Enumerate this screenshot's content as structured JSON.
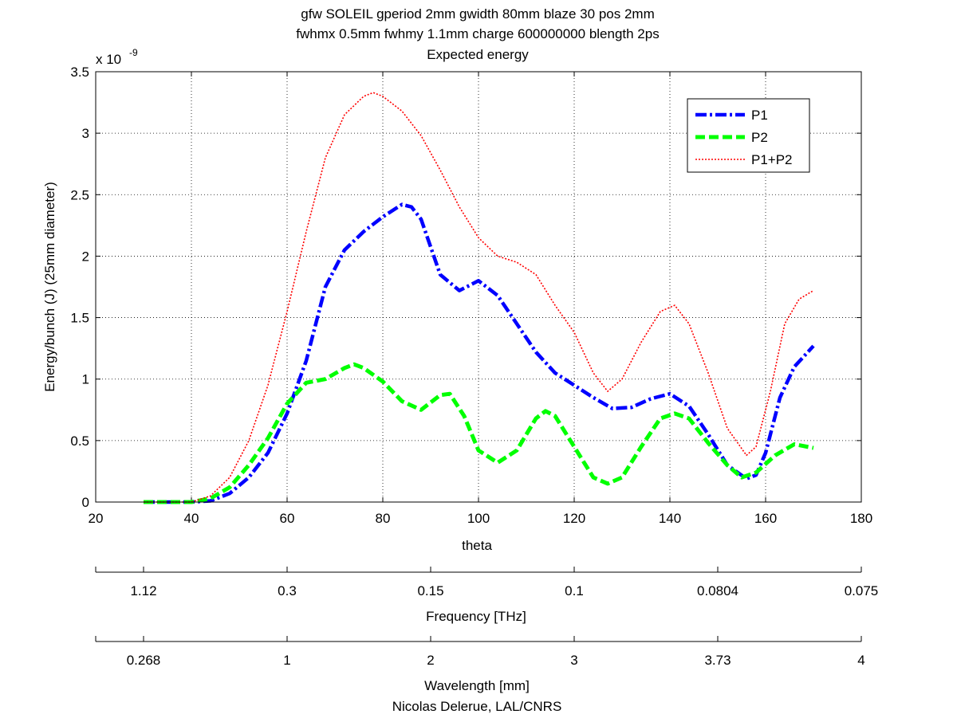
{
  "chart_data": {
    "type": "line",
    "title_lines": [
      "gfw SOLEIL gperiod 2mm gwidth 80mm blaze 30 pos 2mm",
      "fwhmx 0.5mm fwhmy 1.1mm charge 600000000 blength 2ps",
      "Expected energy"
    ],
    "xlabel": "theta",
    "ylabel": "Energy/bunch (J) (25mm diameter)",
    "y_exponent_label": "x 10",
    "y_exponent": "-9",
    "xlim": [
      20,
      180
    ],
    "ylim": [
      0,
      3.5
    ],
    "x_ticks": [
      "20",
      "40",
      "60",
      "80",
      "100",
      "120",
      "140",
      "160",
      "180"
    ],
    "y_ticks": [
      "0",
      "0.5",
      "1",
      "1.5",
      "2",
      "2.5",
      "3",
      "3.5"
    ],
    "grid": true,
    "legend_position": "top-right",
    "series": [
      {
        "name": "P1",
        "color": "#0000ff",
        "style": "dash-dot",
        "x": [
          30,
          40,
          44,
          48,
          52,
          56,
          60,
          64,
          68,
          72,
          76,
          80,
          84,
          86,
          88,
          92,
          96,
          100,
          104,
          108,
          112,
          116,
          120,
          124,
          128,
          132,
          136,
          140,
          144,
          148,
          152,
          156,
          158,
          160,
          163,
          166,
          170
        ],
        "y": [
          0,
          0,
          0.01,
          0.07,
          0.2,
          0.4,
          0.72,
          1.15,
          1.75,
          2.05,
          2.2,
          2.32,
          2.42,
          2.4,
          2.3,
          1.85,
          1.72,
          1.8,
          1.68,
          1.45,
          1.22,
          1.05,
          0.95,
          0.85,
          0.76,
          0.77,
          0.84,
          0.88,
          0.78,
          0.55,
          0.3,
          0.19,
          0.22,
          0.4,
          0.85,
          1.1,
          1.27
        ]
      },
      {
        "name": "P2",
        "color": "#00ff00",
        "style": "dashed",
        "x": [
          30,
          40,
          44,
          48,
          52,
          56,
          60,
          64,
          68,
          72,
          74,
          76,
          80,
          84,
          88,
          92,
          94,
          97,
          100,
          104,
          108,
          112,
          114,
          116,
          120,
          124,
          127,
          130,
          134,
          138,
          141,
          144,
          148,
          152,
          155,
          158,
          162,
          166,
          170
        ],
        "y": [
          0,
          0,
          0.03,
          0.12,
          0.3,
          0.52,
          0.8,
          0.97,
          1.0,
          1.09,
          1.12,
          1.09,
          0.98,
          0.82,
          0.75,
          0.87,
          0.88,
          0.7,
          0.42,
          0.32,
          0.42,
          0.68,
          0.74,
          0.7,
          0.45,
          0.2,
          0.15,
          0.2,
          0.45,
          0.68,
          0.72,
          0.68,
          0.48,
          0.3,
          0.2,
          0.24,
          0.38,
          0.47,
          0.44
        ]
      },
      {
        "name": "P1+P2",
        "color": "#ff0000",
        "style": "dotted",
        "x": [
          30,
          40,
          44,
          48,
          52,
          56,
          60,
          64,
          68,
          72,
          76,
          78,
          80,
          84,
          88,
          92,
          96,
          100,
          104,
          108,
          112,
          116,
          120,
          124,
          127,
          130,
          134,
          138,
          141,
          144,
          148,
          152,
          156,
          158,
          161,
          164,
          167,
          170
        ],
        "y": [
          0,
          0,
          0.05,
          0.2,
          0.5,
          0.95,
          1.55,
          2.2,
          2.8,
          3.15,
          3.3,
          3.33,
          3.3,
          3.18,
          2.98,
          2.7,
          2.4,
          2.15,
          2.0,
          1.95,
          1.85,
          1.6,
          1.38,
          1.05,
          0.9,
          1.0,
          1.3,
          1.55,
          1.6,
          1.45,
          1.05,
          0.6,
          0.38,
          0.45,
          0.9,
          1.45,
          1.65,
          1.72
        ]
      }
    ],
    "secondary_axes": [
      {
        "label": "Frequency [THz]",
        "tick_labels": [
          "1.12",
          "0.3",
          "0.15",
          "0.1",
          "0.0804",
          "0.075"
        ],
        "tick_positions_theta": [
          30,
          60,
          90,
          120,
          150,
          180
        ]
      },
      {
        "label": "Wavelength [mm]",
        "tick_labels": [
          "0.268",
          "1",
          "2",
          "3",
          "3.73",
          "4"
        ],
        "tick_positions_theta": [
          30,
          60,
          90,
          120,
          150,
          180
        ]
      }
    ],
    "footer": "Nicolas Delerue, LAL/CNRS"
  }
}
